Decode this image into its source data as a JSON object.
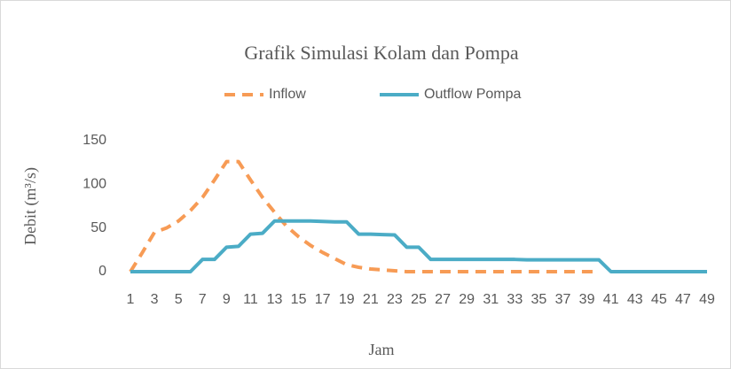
{
  "chart_data": {
    "type": "line",
    "title": "Grafik Simulasi Kolam dan Pompa",
    "x_label": "Jam",
    "y_label": "Debit (m³/s)",
    "categories": [
      1,
      null,
      3,
      null,
      5,
      null,
      7,
      null,
      9,
      null,
      11,
      null,
      13,
      null,
      15,
      null,
      17,
      null,
      19,
      null,
      21,
      null,
      23,
      null,
      25,
      null,
      27,
      null,
      29,
      null,
      31,
      null,
      33,
      null,
      35,
      null,
      37,
      null,
      39,
      null,
      41,
      null,
      43,
      null,
      45,
      null,
      47,
      null,
      49
    ],
    "series": [
      {
        "name": "Inflow",
        "color": "#f79b55",
        "dash": true,
        "values": [
          0,
          22,
          45,
          50,
          58,
          70,
          85,
          105,
          126,
          126,
          105,
          85,
          68,
          52,
          40,
          30,
          22,
          15,
          8,
          5,
          3,
          2,
          1,
          0,
          0,
          0,
          0,
          0,
          0,
          0,
          0,
          0,
          0,
          0,
          0,
          0,
          0,
          0,
          0,
          0,
          null,
          null,
          null,
          null,
          null,
          null,
          null,
          null,
          null
        ]
      },
      {
        "name": "Outflow Pompa",
        "color": "#4bacc6",
        "dash": false,
        "values": [
          0,
          0,
          0,
          0,
          0,
          0,
          14,
          14,
          28,
          29,
          43,
          44,
          58,
          58,
          58,
          58,
          57.5,
          57,
          57,
          43,
          43,
          42.5,
          42,
          28,
          28,
          14,
          14,
          14,
          14,
          14,
          14,
          14,
          14,
          13.5,
          13.5,
          13.5,
          13.5,
          13.5,
          13.5,
          13.5,
          0,
          0,
          0,
          0,
          0,
          0,
          0,
          0,
          0
        ]
      }
    ],
    "ylim": [
      0,
      150
    ],
    "yticks": [
      0,
      50,
      100,
      150
    ],
    "grid": false,
    "legend": "top"
  }
}
